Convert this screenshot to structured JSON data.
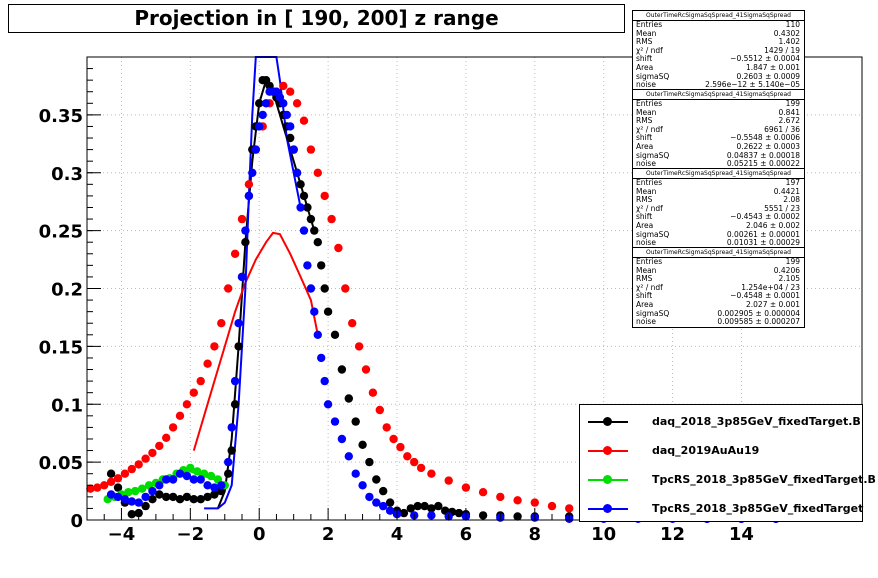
{
  "title": "Projection in [ 190, 200] z range",
  "chart_data": {
    "type": "scatter",
    "title": "Projection in [ 190, 200] z range",
    "xlim": [
      -5,
      17.5
    ],
    "ylim": [
      0,
      0.4
    ],
    "xticks": [
      -4,
      -2,
      0,
      2,
      4,
      6,
      8,
      10,
      12,
      14
    ],
    "xtick_labels": [
      "−4",
      "−2",
      "0",
      "2",
      "4",
      "6",
      "8",
      "10",
      "12",
      "14"
    ],
    "yticks": [
      0,
      0.05,
      0.1,
      0.15,
      0.2,
      0.25,
      0.3,
      0.35
    ],
    "ytick_labels": [
      "0",
      "0.05",
      "0.1",
      "0.15",
      "0.2",
      "0.25",
      "0.3",
      "0.35"
    ],
    "grid": true,
    "legend_position": "bottom-right",
    "series": [
      {
        "name": "daq_2018_3p85GeV_fixedTarget.B",
        "color": "#000000",
        "x": [
          -4.3,
          -4.1,
          -3.9,
          -3.7,
          -3.5,
          -3.3,
          -3.1,
          -2.9,
          -2.7,
          -2.5,
          -2.3,
          -2.1,
          -1.9,
          -1.7,
          -1.5,
          -1.3,
          -1.1,
          -0.9,
          -0.8,
          -0.7,
          -0.6,
          -0.5,
          -0.4,
          -0.3,
          -0.2,
          -0.1,
          0.0,
          0.1,
          0.2,
          0.3,
          0.4,
          0.5,
          0.6,
          0.7,
          0.8,
          0.9,
          1.0,
          1.1,
          1.2,
          1.3,
          1.4,
          1.5,
          1.6,
          1.7,
          1.8,
          1.9,
          2.0,
          2.2,
          2.4,
          2.6,
          2.8,
          3.0,
          3.2,
          3.4,
          3.6,
          3.8,
          4.0,
          4.2,
          4.4,
          4.6,
          4.8,
          5.0,
          5.2,
          5.4,
          5.6,
          5.8,
          6.0,
          6.5,
          7.0,
          7.5,
          8.0,
          9.0,
          10.0,
          11.0,
          12.0,
          13.0,
          14.0,
          15.0
        ],
        "y": [
          0.04,
          0.028,
          0.015,
          0.005,
          0.006,
          0.012,
          0.018,
          0.022,
          0.02,
          0.02,
          0.018,
          0.02,
          0.018,
          0.018,
          0.02,
          0.022,
          0.025,
          0.04,
          0.06,
          0.1,
          0.15,
          0.21,
          0.24,
          0.28,
          0.32,
          0.34,
          0.36,
          0.38,
          0.38,
          0.375,
          0.37,
          0.365,
          0.36,
          0.35,
          0.34,
          0.33,
          0.32,
          0.3,
          0.29,
          0.28,
          0.27,
          0.26,
          0.25,
          0.24,
          0.22,
          0.2,
          0.18,
          0.16,
          0.13,
          0.105,
          0.085,
          0.065,
          0.05,
          0.035,
          0.025,
          0.015,
          0.008,
          0.006,
          0.01,
          0.012,
          0.012,
          0.01,
          0.012,
          0.008,
          0.007,
          0.006,
          0.005,
          0.004,
          0.004,
          0.003,
          0.003,
          0.003,
          0.002,
          0.002,
          0.002,
          0.001,
          0.001,
          0.001
        ]
      },
      {
        "name": "daq_2019AuAu19",
        "color": "#ff0000",
        "x": [
          -4.9,
          -4.7,
          -4.5,
          -4.3,
          -4.1,
          -3.9,
          -3.7,
          -3.5,
          -3.3,
          -3.1,
          -2.9,
          -2.7,
          -2.5,
          -2.3,
          -2.1,
          -1.9,
          -1.7,
          -1.5,
          -1.3,
          -1.1,
          -0.9,
          -0.7,
          -0.5,
          -0.3,
          -0.1,
          0.1,
          0.3,
          0.5,
          0.7,
          0.9,
          1.1,
          1.3,
          1.5,
          1.7,
          1.9,
          2.1,
          2.3,
          2.5,
          2.7,
          2.9,
          3.1,
          3.3,
          3.5,
          3.7,
          3.9,
          4.1,
          4.3,
          4.5,
          4.7,
          5.0,
          5.5,
          6.0,
          6.5,
          7.0,
          7.5,
          8.0,
          8.5,
          9.0,
          9.5,
          10.0,
          11.0,
          12.0,
          13.0,
          14.0,
          15.0
        ],
        "y": [
          0.027,
          0.028,
          0.03,
          0.033,
          0.036,
          0.04,
          0.044,
          0.048,
          0.053,
          0.058,
          0.064,
          0.071,
          0.08,
          0.09,
          0.1,
          0.11,
          0.12,
          0.135,
          0.15,
          0.17,
          0.2,
          0.23,
          0.26,
          0.29,
          0.32,
          0.34,
          0.36,
          0.37,
          0.375,
          0.37,
          0.36,
          0.345,
          0.32,
          0.3,
          0.28,
          0.26,
          0.235,
          0.2,
          0.17,
          0.15,
          0.13,
          0.11,
          0.095,
          0.08,
          0.07,
          0.063,
          0.055,
          0.05,
          0.045,
          0.04,
          0.034,
          0.028,
          0.024,
          0.02,
          0.017,
          0.015,
          0.012,
          0.01,
          0.009,
          0.008,
          0.006,
          0.004,
          0.003,
          0.002,
          0.0015
        ]
      },
      {
        "name": "TpcRS_2018_3p85GeV_fixedTarget.B",
        "color": "#00dd00",
        "x": [
          -4.4,
          -4.2,
          -4.0,
          -3.8,
          -3.6,
          -3.4,
          -3.2,
          -3.0,
          -2.8,
          -2.6,
          -2.4,
          -2.2,
          -2.0,
          -1.8,
          -1.6,
          -1.4,
          -1.2,
          -1.0
        ],
        "y": [
          0.018,
          0.02,
          0.022,
          0.024,
          0.025,
          0.027,
          0.03,
          0.032,
          0.035,
          0.036,
          0.04,
          0.043,
          0.045,
          0.042,
          0.04,
          0.038,
          0.035,
          0.03
        ]
      },
      {
        "name": "TpcRS_2018_3p85GeV_fixedTarget",
        "color": "#0000ff",
        "x": [
          -4.3,
          -4.1,
          -3.9,
          -3.7,
          -3.5,
          -3.3,
          -3.1,
          -2.9,
          -2.7,
          -2.5,
          -2.3,
          -2.1,
          -1.9,
          -1.7,
          -1.5,
          -1.3,
          -1.1,
          -0.9,
          -0.8,
          -0.7,
          -0.6,
          -0.5,
          -0.4,
          -0.3,
          -0.2,
          -0.1,
          0.0,
          0.1,
          0.2,
          0.3,
          0.4,
          0.5,
          0.6,
          0.7,
          0.8,
          0.9,
          1.0,
          1.1,
          1.2,
          1.3,
          1.4,
          1.5,
          1.6,
          1.7,
          1.8,
          1.9,
          2.0,
          2.2,
          2.4,
          2.6,
          2.8,
          3.0,
          3.2,
          3.4,
          3.6,
          3.8,
          4.0,
          4.5,
          5.0,
          5.5,
          6.0,
          7.0,
          8.0,
          9.0,
          10.0,
          11.0,
          12.0,
          13.0,
          14.0,
          15.0
        ],
        "y": [
          0.022,
          0.02,
          0.018,
          0.016,
          0.015,
          0.02,
          0.025,
          0.03,
          0.035,
          0.035,
          0.04,
          0.038,
          0.035,
          0.035,
          0.03,
          0.028,
          0.03,
          0.05,
          0.08,
          0.12,
          0.17,
          0.21,
          0.25,
          0.28,
          0.3,
          0.32,
          0.34,
          0.35,
          0.36,
          0.37,
          0.37,
          0.37,
          0.365,
          0.36,
          0.35,
          0.34,
          0.32,
          0.3,
          0.27,
          0.25,
          0.22,
          0.2,
          0.18,
          0.16,
          0.14,
          0.12,
          0.1,
          0.085,
          0.07,
          0.055,
          0.04,
          0.03,
          0.02,
          0.015,
          0.012,
          0.008,
          0.005,
          0.004,
          0.004,
          0.003,
          0.003,
          0.002,
          0.002,
          0.001,
          0.001,
          0.001,
          0.001,
          0.001,
          0.001,
          0.001
        ]
      }
    ],
    "fits": [
      {
        "series": "daq_2018_3p85GeV_fixedTarget.B",
        "color": "#000000",
        "xmin": -1.2,
        "xmax": 1.6,
        "x": [
          -1.2,
          -1.0,
          -0.8,
          -0.6,
          -0.4,
          -0.2,
          0.0,
          0.2,
          0.4,
          0.6,
          0.8,
          1.0,
          1.2,
          1.4,
          1.6
        ],
        "y": [
          0.01,
          0.025,
          0.07,
          0.15,
          0.24,
          0.31,
          0.36,
          0.38,
          0.37,
          0.35,
          0.33,
          0.31,
          0.29,
          0.27,
          0.25
        ]
      },
      {
        "series": "daq_2019AuAu19",
        "color": "#ff0000",
        "xmin": -1.9,
        "xmax": 1.7,
        "x": [
          -1.9,
          -1.6,
          -1.3,
          -1.0,
          -0.7,
          -0.4,
          -0.1,
          0.2,
          0.4,
          0.6,
          0.9,
          1.2,
          1.5,
          1.7
        ],
        "y": [
          0.06,
          0.09,
          0.12,
          0.15,
          0.18,
          0.205,
          0.225,
          0.24,
          0.248,
          0.247,
          0.23,
          0.21,
          0.19,
          0.16
        ]
      },
      {
        "series": "TpcRS_2018_3p85GeV_fixedTarget.B",
        "color": "#00dd00",
        "xmin": -4.4,
        "xmax": -1.0,
        "x": [
          -4.4,
          -4.0,
          -3.6,
          -3.2,
          -2.8,
          -2.4,
          -2.0,
          -1.6,
          -1.2,
          -1.0
        ],
        "y": [
          0.018,
          0.021,
          0.025,
          0.03,
          0.034,
          0.039,
          0.042,
          0.038,
          0.034,
          0.03
        ]
      },
      {
        "series": "TpcRS_2018_3p85GeV_fixedTarget",
        "color": "#0000ff",
        "xmin": -1.6,
        "xmax": 1.2,
        "x": [
          -1.6,
          -1.2,
          -1.0,
          -0.8,
          -0.6,
          -0.5,
          -0.4,
          -0.3,
          -0.2,
          -0.1,
          0.0,
          0.1,
          0.2,
          0.3,
          0.4,
          0.5,
          0.6,
          0.8,
          1.0,
          1.2
        ],
        "y": [
          0.01,
          0.01,
          0.015,
          0.03,
          0.1,
          0.15,
          0.2,
          0.28,
          0.35,
          0.42,
          0.5,
          0.5,
          0.5,
          0.5,
          0.5,
          0.45,
          0.38,
          0.33,
          0.3,
          0.27
        ]
      }
    ]
  },
  "stats": [
    {
      "header": "OuterTimeRcSigmaSqSpread_41SigmaSqSpread",
      "rows": [
        [
          "Entries",
          "110"
        ],
        [
          "Mean",
          "0.4302"
        ],
        [
          "RMS",
          "1.402"
        ],
        [
          "χ² / ndf",
          "1429 / 19"
        ],
        [
          "shift",
          "−0.5512 ± 0.0004"
        ],
        [
          "Area",
          "1.847 ± 0.001"
        ],
        [
          "sigmaSQ",
          "0.2603 ± 0.0009"
        ],
        [
          "noise",
          "2.596e−12 ± 5.140e−05"
        ]
      ]
    },
    {
      "header": "OuterTimeRcSigmaSqSpread_41SigmaSqSpread",
      "rows": [
        [
          "Entries",
          "199"
        ],
        [
          "Mean",
          "0.841"
        ],
        [
          "RMS",
          "2.672"
        ],
        [
          "χ² / ndf",
          "6961 / 36"
        ],
        [
          "shift",
          "−0.5548 ± 0.0006"
        ],
        [
          "Area",
          "0.2622 ± 0.0003"
        ],
        [
          "sigmaSQ",
          "0.04837 ± 0.00018"
        ],
        [
          "noise",
          "0.05215 ± 0.00022"
        ]
      ]
    },
    {
      "header": "OuterTimeRcSigmaSqSpread_41SigmaSqSpread",
      "rows": [
        [
          "Entries",
          "197"
        ],
        [
          "Mean",
          "0.4421"
        ],
        [
          "RMS",
          "2.08"
        ],
        [
          "χ² / ndf",
          "5551 / 23"
        ],
        [
          "shift",
          "−0.4543 ± 0.0002"
        ],
        [
          "Area",
          "2.046 ± 0.002"
        ],
        [
          "sigmaSQ",
          "0.00261 ± 0.00001"
        ],
        [
          "noise",
          "0.01031 ± 0.00029"
        ]
      ]
    },
    {
      "header": "OuterTimeRcSigmaSqSpread_41SigmaSqSpread",
      "rows": [
        [
          "Entries",
          "199"
        ],
        [
          "Mean",
          "0.4206"
        ],
        [
          "RMS",
          "2.105"
        ],
        [
          "χ² / ndf",
          "1.254e+04 / 23"
        ],
        [
          "shift",
          "−0.4548 ± 0.0001"
        ],
        [
          "Area",
          "2.027 ± 0.001"
        ],
        [
          "sigmaSQ",
          "0.002905 ± 0.000004"
        ],
        [
          "noise",
          "0.009585 ± 0.000207"
        ]
      ]
    }
  ],
  "legend": [
    {
      "label": "daq_2018_3p85GeV_fixedTarget.B",
      "color": "#000000"
    },
    {
      "label": "daq_2019AuAu19",
      "color": "#ff0000"
    },
    {
      "label": "TpcRS_2018_3p85GeV_fixedTarget.B",
      "color": "#00dd00"
    },
    {
      "label": "TpcRS_2018_3p85GeV_fixedTarget",
      "color": "#0000ff"
    }
  ]
}
